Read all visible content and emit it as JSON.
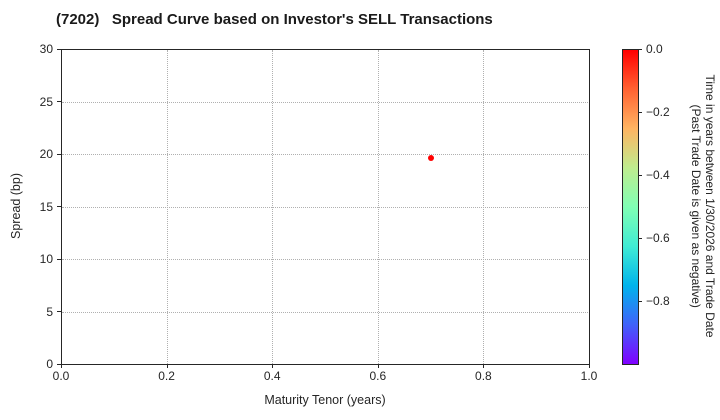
{
  "chart_data": {
    "type": "scatter",
    "title": "(7202)   Spread Curve based on Investor's SELL Transactions",
    "xlabel": "Maturity Tenor (years)",
    "ylabel": "Spread (bp)",
    "xlim": [
      0.0,
      1.0
    ],
    "ylim": [
      0,
      30
    ],
    "x_ticks": [
      0,
      0.2,
      0.4,
      0.6,
      0.8,
      1.0
    ],
    "x_tick_labels": [
      "0.0",
      "0.2",
      "0.4",
      "0.6",
      "0.8",
      "1.0"
    ],
    "y_ticks": [
      0,
      5,
      10,
      15,
      20,
      25,
      30
    ],
    "y_tick_labels": [
      "0",
      "5",
      "10",
      "15",
      "20",
      "25",
      "30"
    ],
    "grid": true,
    "grid_style": "dotted",
    "points": [
      {
        "x": 0.7,
        "y": 19.6,
        "trade_time_value": 0.0,
        "color": "#ff0000"
      }
    ],
    "colorbar": {
      "label_line1": "Time in years between 1/30/2026 and Trade Date",
      "label_line2": "(Past Trade Date is given as negative)",
      "range": [
        0,
        -1.0
      ],
      "tick_values": [
        0,
        -0.2,
        -0.4,
        -0.6,
        -0.8
      ],
      "tick_labels": [
        "0.0",
        "−0.2",
        "−0.4",
        "−0.6",
        "−0.8"
      ],
      "colormap": "rainbow",
      "gradient_top_to_bottom": [
        "#ff0000",
        "#ff6232",
        "#ffb462",
        "#bfec8e",
        "#80ffb4",
        "#40ecd4",
        "#00b4ec",
        "#4062fa",
        "#8000ff"
      ]
    },
    "legend": null
  },
  "colors": {
    "background": "#ffffff",
    "text": "#262626",
    "grid": "#b0b0b0",
    "spine": "#262626",
    "point": "#ff0000"
  }
}
